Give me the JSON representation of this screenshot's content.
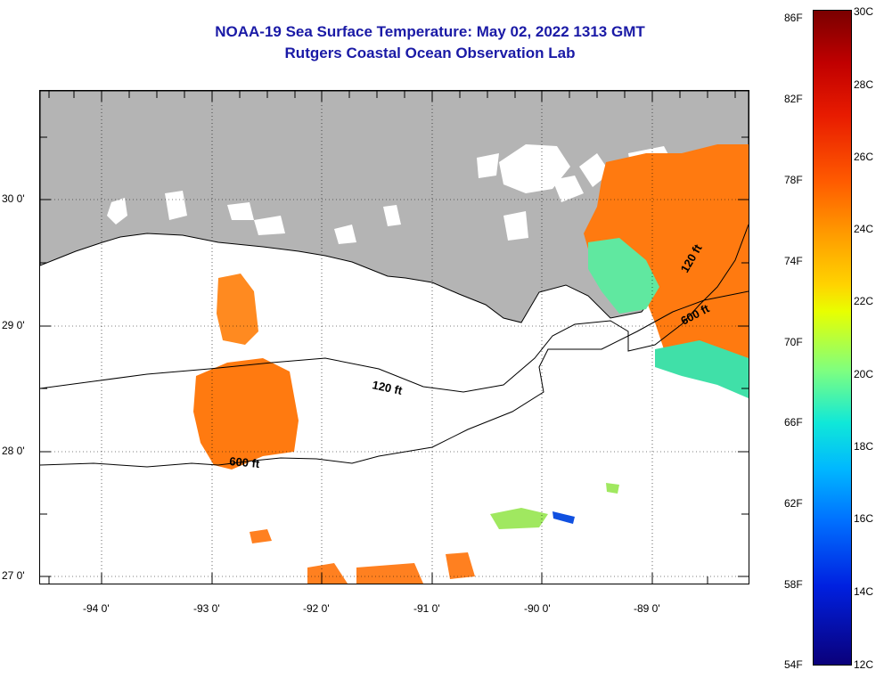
{
  "header": {
    "title": "NOAA-19 Sea Surface Temperature:  May 02, 2022 1313 GMT",
    "subtitle": "Rutgers Coastal Ocean Observation Lab"
  },
  "map": {
    "lat_labels": [
      "30 0'",
      "29 0'",
      "28 0'",
      "27 0'"
    ],
    "lon_labels": [
      "-94 0'",
      "-93 0'",
      "-92 0'",
      "-91 0'",
      "-90 0'",
      "-89 0'"
    ],
    "contour_labels": [
      "120 ft",
      "600 ft",
      "120 ft",
      "600 ft"
    ],
    "colors": {
      "land": "#b4b4b4",
      "cloud": "#ffffff",
      "ocean_warm": "#ff7a10"
    }
  },
  "colorbar": {
    "f_labels": [
      "86F",
      "82F",
      "78F",
      "74F",
      "70F",
      "66F",
      "62F",
      "58F",
      "54F"
    ],
    "c_labels": [
      "30C",
      "28C",
      "26C",
      "24C",
      "22C",
      "20C",
      "18C",
      "16C",
      "14C",
      "12C"
    ]
  }
}
